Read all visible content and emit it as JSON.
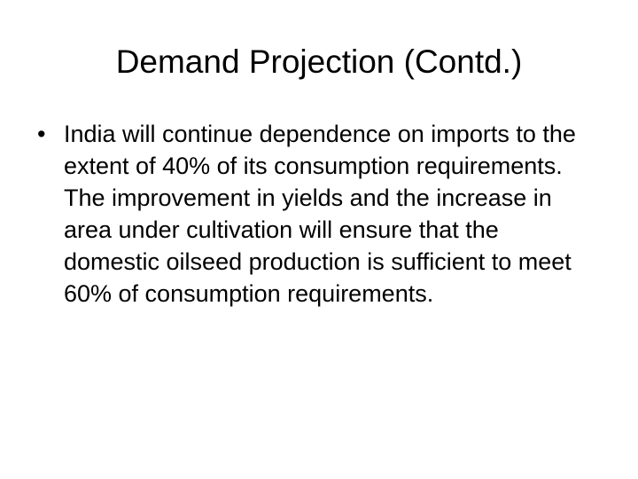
{
  "slide": {
    "title": "Demand Projection (Contd.)",
    "bullets": [
      "India will continue dependence on imports to the extent of 40% of its consumption requirements. The improvement in yields and the increase in area under cultivation will ensure that the domestic oilseed production is sufficient to meet 60% of consumption requirements."
    ]
  }
}
